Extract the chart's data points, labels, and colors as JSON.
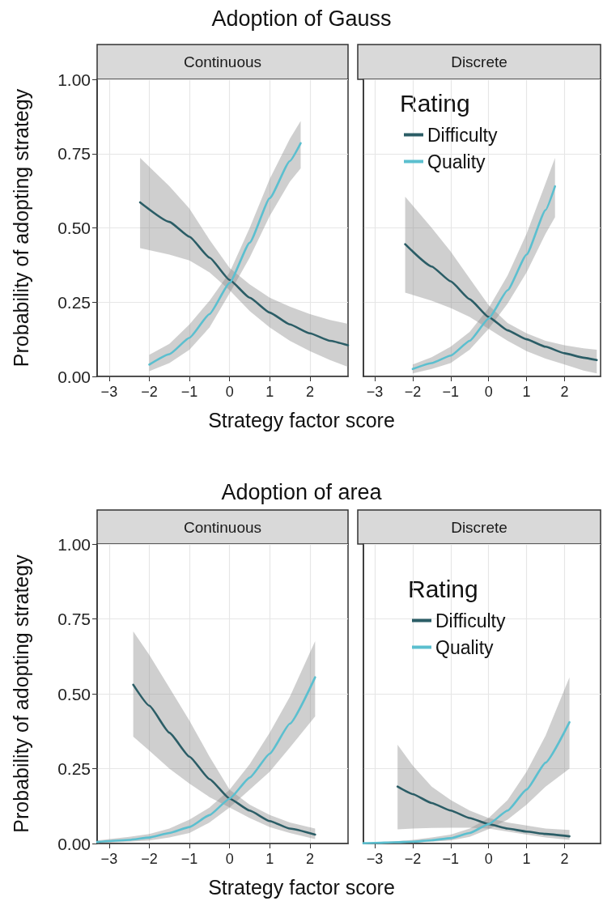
{
  "chart_data": [
    {
      "type": "line",
      "title": "Adoption of Gauss",
      "subtitle": "Continuous",
      "xlabel": "Strategy factor score",
      "ylabel": "Probability of adopting strategy",
      "xlim": [
        -3.3,
        2.95
      ],
      "ylim": [
        0,
        1
      ],
      "xticks": [
        {
          "value": -3,
          "label": "−3"
        },
        {
          "value": -2,
          "label": "−2"
        },
        {
          "value": -1,
          "label": "−1"
        },
        0,
        1,
        2
      ],
      "yticks": [
        {
          "value": 0,
          "label": "0.00"
        },
        {
          "value": 0.25,
          "label": "0.25"
        },
        {
          "value": 0.5,
          "label": "0.50"
        },
        {
          "value": 0.75,
          "label": "0.75"
        },
        {
          "value": 1,
          "label": "1.00"
        }
      ],
      "grid": true,
      "series": [
        {
          "color": "#2b5d66",
          "x": [
            -2.23,
            -1.5,
            -1,
            -0.5,
            0,
            0.5,
            1,
            1.5,
            2,
            2.5,
            2.95
          ],
          "values": [
            0.586,
            0.52,
            0.47,
            0.4,
            0.325,
            0.265,
            0.215,
            0.175,
            0.145,
            0.12,
            0.105
          ],
          "lower": [
            0.432,
            0.41,
            0.39,
            0.35,
            0.29,
            0.22,
            0.165,
            0.12,
            0.085,
            0.055,
            0.032
          ],
          "upper": [
            0.736,
            0.64,
            0.565,
            0.46,
            0.365,
            0.31,
            0.265,
            0.235,
            0.21,
            0.19,
            0.177
          ]
        },
        {
          "color": "#5bbfcf",
          "x": [
            -2,
            -1.5,
            -1,
            -0.5,
            0,
            0.5,
            1,
            1.5,
            1.77
          ],
          "values": [
            0.04,
            0.075,
            0.13,
            0.21,
            0.315,
            0.45,
            0.6,
            0.725,
            0.785
          ],
          "lower": [
            0.018,
            0.045,
            0.09,
            0.165,
            0.28,
            0.4,
            0.54,
            0.655,
            0.7
          ],
          "upper": [
            0.073,
            0.11,
            0.175,
            0.255,
            0.35,
            0.5,
            0.665,
            0.8,
            0.86
          ]
        }
      ]
    },
    {
      "type": "line",
      "subtitle": "Discrete",
      "legend_title": "Rating",
      "legend": "top left",
      "tick_labels": "x",
      "xlim": [
        -3.3,
        2.95
      ],
      "ylim": [
        0,
        1
      ],
      "xticks": [
        {
          "value": -3,
          "label": "−3"
        },
        {
          "value": -2,
          "label": "−2"
        },
        {
          "value": -1,
          "label": "−1"
        },
        0,
        1,
        2
      ],
      "yticks": [
        {
          "value": 0,
          "label": null
        },
        {
          "value": 0.25,
          "label": null
        },
        {
          "value": 0.5,
          "label": null
        },
        {
          "value": 0.75,
          "label": null
        },
        {
          "value": 1,
          "label": null
        }
      ],
      "grid": true,
      "series": [
        {
          "name": "Difficulty",
          "color": "#2b5d66",
          "x": [
            -2.2,
            -1.5,
            -1,
            -0.5,
            0,
            0.5,
            1,
            1.5,
            2,
            2.5,
            2.85
          ],
          "values": [
            0.445,
            0.37,
            0.32,
            0.26,
            0.2,
            0.155,
            0.125,
            0.1,
            0.078,
            0.063,
            0.055
          ],
          "lower": [
            0.282,
            0.255,
            0.23,
            0.2,
            0.16,
            0.12,
            0.085,
            0.06,
            0.04,
            0.02,
            0.01
          ],
          "upper": [
            0.605,
            0.5,
            0.42,
            0.33,
            0.24,
            0.18,
            0.145,
            0.12,
            0.105,
            0.095,
            0.09
          ]
        },
        {
          "name": "Quality",
          "color": "#5bbfcf",
          "x": [
            -2,
            -1.5,
            -1,
            -0.5,
            0,
            0.5,
            1,
            1.5,
            1.75
          ],
          "values": [
            0.025,
            0.045,
            0.07,
            0.12,
            0.195,
            0.29,
            0.41,
            0.56,
            0.64
          ],
          "lower": [
            0.01,
            0.025,
            0.045,
            0.09,
            0.16,
            0.245,
            0.35,
            0.48,
            0.536
          ],
          "upper": [
            0.04,
            0.065,
            0.1,
            0.15,
            0.23,
            0.34,
            0.48,
            0.65,
            0.736
          ]
        }
      ]
    },
    {
      "type": "line",
      "title": "Adoption of area",
      "subtitle": "Continuous",
      "xlabel": "Strategy factor score",
      "ylabel": "Probability of adopting strategy",
      "xlim": [
        -3.3,
        2.95
      ],
      "ylim": [
        0,
        1
      ],
      "xticks": [
        {
          "value": -3,
          "label": "−3"
        },
        {
          "value": -2,
          "label": "−2"
        },
        {
          "value": -1,
          "label": "−1"
        },
        0,
        1,
        2
      ],
      "yticks": [
        {
          "value": 0,
          "label": "0.00"
        },
        {
          "value": 0.25,
          "label": "0.25"
        },
        {
          "value": 0.5,
          "label": "0.50"
        },
        {
          "value": 0.75,
          "label": "0.75"
        },
        {
          "value": 1,
          "label": "1.00"
        }
      ],
      "grid": true,
      "series": [
        {
          "color": "#2b5d66",
          "x": [
            -2.4,
            -2,
            -1.5,
            -1,
            -0.5,
            0,
            0.5,
            1,
            1.5,
            2.13
          ],
          "values": [
            0.53,
            0.46,
            0.37,
            0.29,
            0.215,
            0.15,
            0.11,
            0.075,
            0.05,
            0.03
          ],
          "lower": [
            0.357,
            0.31,
            0.25,
            0.2,
            0.155,
            0.12,
            0.085,
            0.055,
            0.035,
            0.015
          ],
          "upper": [
            0.708,
            0.63,
            0.52,
            0.41,
            0.29,
            0.18,
            0.13,
            0.095,
            0.07,
            0.05
          ]
        },
        {
          "color": "#5bbfcf",
          "x": [
            -3.3,
            -3,
            -2.5,
            -2,
            -1.5,
            -1,
            -0.5,
            0,
            0.5,
            1,
            1.5,
            2.13
          ],
          "values": [
            0.005,
            0.008,
            0.012,
            0.02,
            0.035,
            0.055,
            0.095,
            0.15,
            0.22,
            0.3,
            0.4,
            0.555
          ],
          "lower": [
            0.002,
            0.003,
            0.006,
            0.01,
            0.02,
            0.035,
            0.07,
            0.12,
            0.18,
            0.24,
            0.32,
            0.424
          ],
          "upper": [
            0.01,
            0.015,
            0.022,
            0.032,
            0.05,
            0.08,
            0.12,
            0.18,
            0.265,
            0.37,
            0.49,
            0.676
          ]
        }
      ]
    },
    {
      "type": "line",
      "subtitle": "Discrete",
      "legend_title": "Rating",
      "legend": "top left",
      "tick_labels": "x",
      "xlim": [
        -3.3,
        2.95
      ],
      "ylim": [
        0,
        1
      ],
      "xticks": [
        {
          "value": -3,
          "label": "−3"
        },
        {
          "value": -2,
          "label": "−2"
        },
        {
          "value": -1,
          "label": "−1"
        },
        0,
        1,
        2
      ],
      "yticks": [
        {
          "value": 0,
          "label": null
        },
        {
          "value": 0.25,
          "label": null
        },
        {
          "value": 0.5,
          "label": null
        },
        {
          "value": 0.75,
          "label": null
        },
        {
          "value": 1,
          "label": null
        }
      ],
      "grid": true,
      "series": [
        {
          "name": "Difficulty",
          "color": "#2b5d66",
          "x": [
            -2.4,
            -2,
            -1.5,
            -1,
            -0.5,
            0,
            0.5,
            1,
            1.5,
            2.13
          ],
          "values": [
            0.19,
            0.165,
            0.135,
            0.11,
            0.085,
            0.065,
            0.05,
            0.04,
            0.032,
            0.024
          ],
          "lower": [
            0.047,
            0.05,
            0.052,
            0.053,
            0.053,
            0.05,
            0.04,
            0.03,
            0.02,
            0.012
          ],
          "upper": [
            0.33,
            0.26,
            0.19,
            0.145,
            0.11,
            0.085,
            0.07,
            0.06,
            0.05,
            0.045
          ]
        },
        {
          "name": "Quality",
          "color": "#5bbfcf",
          "x": [
            -3.3,
            -3,
            -2.5,
            -2,
            -1.5,
            -1,
            -0.5,
            0,
            0.5,
            1,
            1.5,
            2.13
          ],
          "values": [
            0.001,
            0.002,
            0.004,
            0.006,
            0.011,
            0.018,
            0.035,
            0.065,
            0.11,
            0.18,
            0.27,
            0.405
          ],
          "lower": [
            0,
            0.001,
            0.002,
            0.003,
            0.006,
            0.01,
            0.022,
            0.048,
            0.08,
            0.13,
            0.19,
            0.25
          ],
          "upper": [
            0.002,
            0.004,
            0.007,
            0.012,
            0.02,
            0.03,
            0.05,
            0.085,
            0.145,
            0.24,
            0.36,
            0.555
          ]
        }
      ]
    }
  ]
}
